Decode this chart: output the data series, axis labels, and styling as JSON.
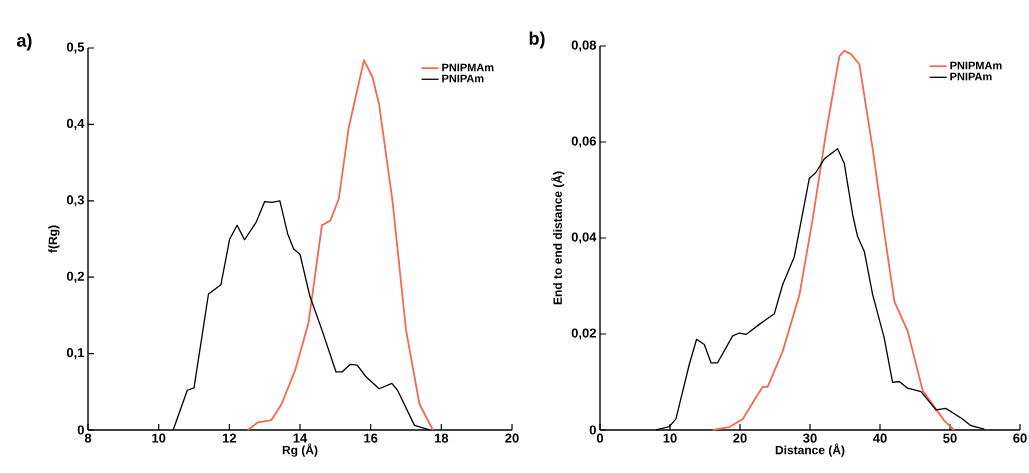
{
  "chart_data": [
    {
      "type": "line",
      "title": "a)",
      "xlabel": "Rg (Å)",
      "ylabel": "f(Rg)",
      "xlim": [
        8,
        20
      ],
      "xticks": [
        8,
        10,
        12,
        14,
        16,
        18,
        20
      ],
      "ylim": [
        0,
        0.5
      ],
      "yticks": [
        0,
        {
          "value": 0.1,
          "label": "0,1"
        },
        {
          "value": 0.2,
          "label": "0,2"
        },
        {
          "value": 0.3,
          "label": "0,3"
        },
        {
          "value": 0.4,
          "label": "0,4"
        },
        {
          "value": 0.5,
          "label": "0,5"
        }
      ],
      "legend": "top right",
      "grid": false,
      "marker": "none",
      "line_style": "solid",
      "series": [
        {
          "name": "PNIPMAm",
          "color": "#f26a50",
          "x": [
            12.52,
            12.81,
            13.19,
            13.48,
            13.86,
            14.24,
            14.62,
            14.86,
            15.1,
            15.38,
            15.81,
            16.05,
            16.24,
            16.62,
            17.0,
            17.38,
            17.76
          ],
          "values": [
            0,
            0.01,
            0.013,
            0.034,
            0.078,
            0.14,
            0.268,
            0.274,
            0.303,
            0.396,
            0.484,
            0.462,
            0.426,
            0.299,
            0.131,
            0.034,
            0
          ]
        },
        {
          "name": "PNIPAm",
          "color": "#000000",
          "x": [
            10.41,
            10.81,
            11.0,
            11.41,
            11.76,
            12.01,
            12.22,
            12.43,
            12.76,
            13.0,
            13.2,
            13.43,
            13.65,
            13.82,
            14.0,
            14.28,
            14.62,
            15.02,
            15.19,
            15.42,
            15.62,
            15.86,
            16.24,
            16.6,
            16.76,
            17.24,
            17.67
          ],
          "values": [
            0,
            0.052,
            0.055,
            0.178,
            0.19,
            0.25,
            0.268,
            0.249,
            0.272,
            0.299,
            0.298,
            0.3,
            0.257,
            0.237,
            0.23,
            0.175,
            0.131,
            0.076,
            0.076,
            0.086,
            0.085,
            0.07,
            0.054,
            0.061,
            0.052,
            0.006,
            0
          ]
        }
      ]
    },
    {
      "type": "line",
      "title": "b)",
      "xlabel": "Distance (Å)",
      "ylabel": "End to end distance (Å)",
      "xlim": [
        0,
        60
      ],
      "xticks": [
        0,
        10,
        20,
        30,
        40,
        50,
        60
      ],
      "ylim": [
        0,
        0.08
      ],
      "yticks": [
        0,
        {
          "value": 0.02,
          "label": "0,02"
        },
        {
          "value": 0.04,
          "label": "0,04"
        },
        {
          "value": 0.06,
          "label": "0,06"
        },
        {
          "value": 0.08,
          "label": "0,08"
        }
      ],
      "legend": "top right",
      "grid": false,
      "marker": "none",
      "line_style": "solid",
      "series": [
        {
          "name": "PNIPMAm",
          "color": "#f26a50",
          "x": [
            16.1,
            18.5,
            20.4,
            22.3,
            23.24,
            23.95,
            26.1,
            28.5,
            30.4,
            32.3,
            34.2,
            34.9,
            35.86,
            37.05,
            38.95,
            40.6,
            42.05,
            43.95,
            46.1,
            49.2,
            50.6
          ],
          "values": [
            0,
            0.0006,
            0.0023,
            0.0068,
            0.009,
            0.009,
            0.0164,
            0.0282,
            0.0441,
            0.062,
            0.0779,
            0.079,
            0.0783,
            0.0762,
            0.0586,
            0.0413,
            0.0268,
            0.0206,
            0.0082,
            0.0019,
            0
          ]
        },
        {
          "name": "PNIPAm",
          "color": "#000000",
          "x": [
            8.0,
            9.9,
            10.85,
            12.76,
            13.8,
            14.9,
            15.86,
            16.8,
            18.95,
            19.9,
            20.86,
            22.76,
            24.9,
            26.1,
            27.76,
            29.9,
            30.86,
            32.05,
            33.95,
            34.9,
            36.1,
            36.8,
            37.76,
            38.95,
            40.6,
            41.8,
            42.76,
            43.95,
            45.86,
            48.0,
            49.4,
            51.8,
            53.0,
            54.9
          ],
          "values": [
            0,
            0.0007,
            0.0023,
            0.0137,
            0.0189,
            0.0178,
            0.014,
            0.014,
            0.0196,
            0.0202,
            0.0199,
            0.022,
            0.0242,
            0.0303,
            0.0361,
            0.0524,
            0.0537,
            0.0565,
            0.0586,
            0.0555,
            0.0448,
            0.0403,
            0.0372,
            0.0282,
            0.0192,
            0.0099,
            0.0101,
            0.0087,
            0.008,
            0.0042,
            0.0045,
            0.0023,
            0.0009,
            0.0002
          ]
        }
      ]
    }
  ]
}
